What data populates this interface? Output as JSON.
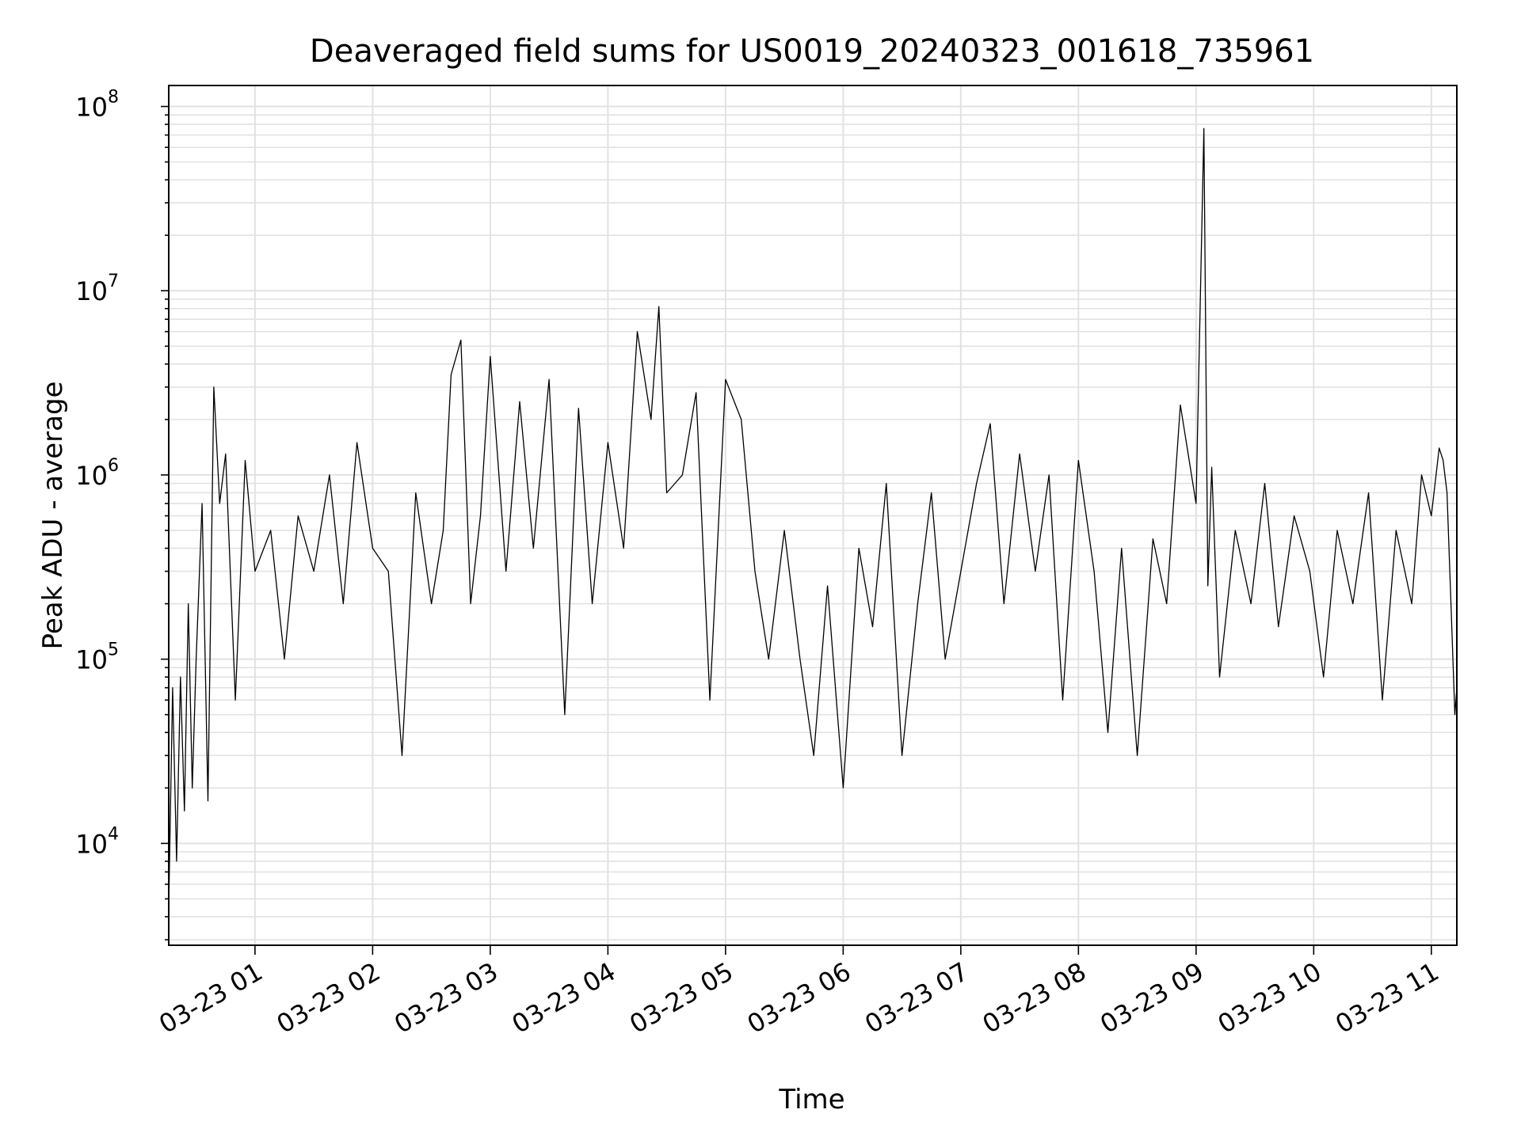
{
  "chart_data": {
    "type": "line",
    "title": "Deaveraged field sums for US0019_20240323_001618_735961",
    "xlabel": "Time",
    "ylabel": "Peak ADU - average",
    "yscale": "log",
    "xlim": [
      "2024-03-23 00:16",
      "2024-03-23 11:13"
    ],
    "ylim": [
      2800,
      130000000
    ],
    "x_ticks": [
      "03-23 01",
      "03-23 02",
      "03-23 03",
      "03-23 04",
      "03-23 05",
      "03-23 06",
      "03-23 07",
      "03-23 08",
      "03-23 09",
      "03-23 10",
      "03-23 11"
    ],
    "y_ticks": [
      {
        "base": "10",
        "exp": "4"
      },
      {
        "base": "10",
        "exp": "6"
      },
      {
        "base": "10",
        "exp": "7"
      },
      {
        "base": "10",
        "exp": "8"
      },
      {
        "base": "10",
        "exp": "5"
      }
    ],
    "grid": true,
    "line_color": "#000000",
    "series": [
      {
        "x": [
          "2024-03-23 00:16",
          "2024-03-23 00:18",
          "2024-03-23 00:20",
          "2024-03-23 00:22",
          "2024-03-23 00:24",
          "2024-03-23 00:26",
          "2024-03-23 00:28",
          "2024-03-23 00:30",
          "2024-03-23 00:33",
          "2024-03-23 00:36",
          "2024-03-23 00:39",
          "2024-03-23 00:42",
          "2024-03-23 00:45",
          "2024-03-23 00:50",
          "2024-03-23 00:55",
          "2024-03-23 01:00",
          "2024-03-23 01:08",
          "2024-03-23 01:15",
          "2024-03-23 01:22",
          "2024-03-23 01:30",
          "2024-03-23 01:38",
          "2024-03-23 01:45",
          "2024-03-23 01:52",
          "2024-03-23 02:00",
          "2024-03-23 02:08",
          "2024-03-23 02:15",
          "2024-03-23 02:22",
          "2024-03-23 02:30",
          "2024-03-23 02:36",
          "2024-03-23 02:40",
          "2024-03-23 02:45",
          "2024-03-23 02:50",
          "2024-03-23 02:55",
          "2024-03-23 03:00",
          "2024-03-23 03:08",
          "2024-03-23 03:15",
          "2024-03-23 03:22",
          "2024-03-23 03:30",
          "2024-03-23 03:38",
          "2024-03-23 03:45",
          "2024-03-23 03:52",
          "2024-03-23 04:00",
          "2024-03-23 04:08",
          "2024-03-23 04:15",
          "2024-03-23 04:22",
          "2024-03-23 04:26",
          "2024-03-23 04:30",
          "2024-03-23 04:38",
          "2024-03-23 04:45",
          "2024-03-23 04:52",
          "2024-03-23 05:00",
          "2024-03-23 05:08",
          "2024-03-23 05:15",
          "2024-03-23 05:22",
          "2024-03-23 05:30",
          "2024-03-23 05:38",
          "2024-03-23 05:45",
          "2024-03-23 05:52",
          "2024-03-23 06:00",
          "2024-03-23 06:08",
          "2024-03-23 06:15",
          "2024-03-23 06:22",
          "2024-03-23 06:30",
          "2024-03-23 06:38",
          "2024-03-23 06:45",
          "2024-03-23 06:52",
          "2024-03-23 07:00",
          "2024-03-23 07:08",
          "2024-03-23 07:15",
          "2024-03-23 07:22",
          "2024-03-23 07:30",
          "2024-03-23 07:38",
          "2024-03-23 07:45",
          "2024-03-23 07:52",
          "2024-03-23 08:00",
          "2024-03-23 08:08",
          "2024-03-23 08:15",
          "2024-03-23 08:22",
          "2024-03-23 08:30",
          "2024-03-23 08:38",
          "2024-03-23 08:45",
          "2024-03-23 08:52",
          "2024-03-23 09:00",
          "2024-03-23 09:04",
          "2024-03-23 09:06",
          "2024-03-23 09:08",
          "2024-03-23 09:12",
          "2024-03-23 09:20",
          "2024-03-23 09:28",
          "2024-03-23 09:35",
          "2024-03-23 09:42",
          "2024-03-23 09:50",
          "2024-03-23 09:58",
          "2024-03-23 10:05",
          "2024-03-23 10:12",
          "2024-03-23 10:20",
          "2024-03-23 10:28",
          "2024-03-23 10:35",
          "2024-03-23 10:42",
          "2024-03-23 10:50",
          "2024-03-23 10:55",
          "2024-03-23 11:00",
          "2024-03-23 11:04",
          "2024-03-23 11:06",
          "2024-03-23 11:08",
          "2024-03-23 11:10",
          "2024-03-23 11:12",
          "2024-03-23 11:13"
        ],
        "values": [
          4500,
          70000,
          8000,
          80000,
          15000,
          200000,
          20000,
          100000,
          700000,
          17000,
          3000000,
          700000,
          1300000,
          60000,
          1200000,
          300000,
          500000,
          100000,
          600000,
          300000,
          1000000,
          200000,
          1500000,
          400000,
          300000,
          30000,
          800000,
          200000,
          500000,
          3500000,
          5400000,
          200000,
          600000,
          4400000,
          300000,
          2500000,
          400000,
          3300000,
          50000,
          2300000,
          200000,
          1500000,
          400000,
          6000000,
          2000000,
          8200000,
          800000,
          1000000,
          2800000,
          60000,
          3300000,
          2000000,
          300000,
          100000,
          500000,
          100000,
          30000,
          250000,
          20000,
          400000,
          150000,
          900000,
          30000,
          200000,
          800000,
          100000,
          300000,
          900000,
          1900000,
          200000,
          1300000,
          300000,
          1000000,
          60000,
          1200000,
          300000,
          40000,
          400000,
          30000,
          450000,
          200000,
          2400000,
          700000,
          76000000,
          250000,
          1100000,
          80000,
          500000,
          200000,
          900000,
          150000,
          600000,
          300000,
          80000,
          500000,
          200000,
          800000,
          60000,
          500000,
          200000,
          1000000,
          600000,
          1400000,
          1200000,
          800000,
          200000,
          50000,
          70000
        ]
      }
    ]
  }
}
